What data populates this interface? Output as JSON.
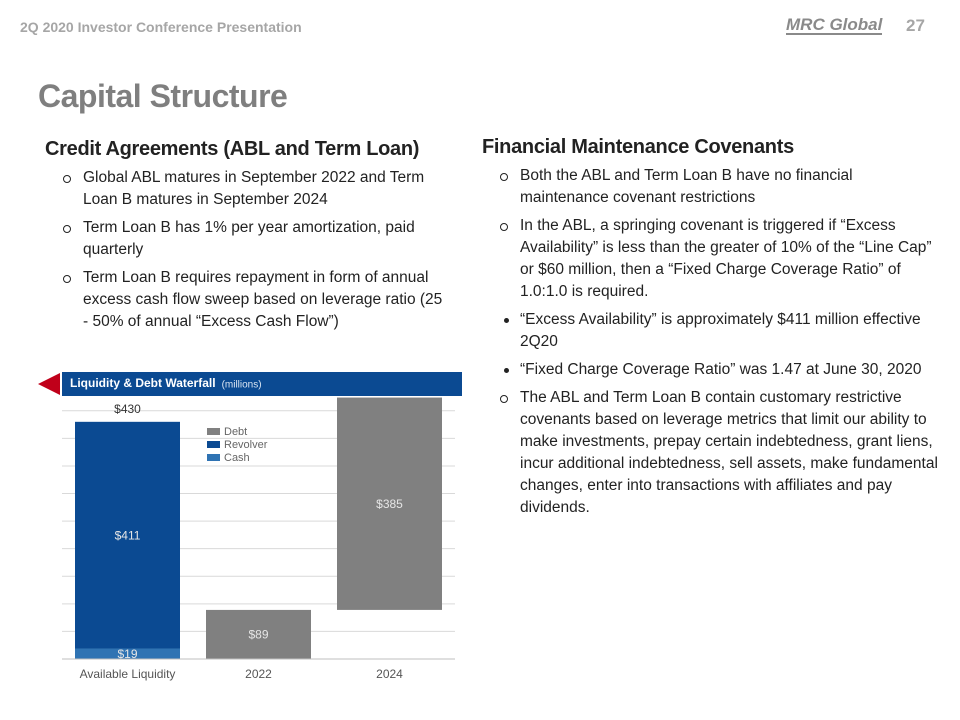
{
  "header": {
    "title": "2Q 2020 Investor Conference Presentation",
    "logo": "MRC Global",
    "page_number": "27"
  },
  "slide_title": "Capital Structure",
  "left": {
    "heading": "Credit Agreements (ABL and Term Loan)",
    "bullets": [
      "Global ABL matures in September 2022 and Term Loan B matures in September 2024",
      "Term Loan B has 1% per year amortization, paid quarterly",
      "Term Loan B requires repayment in form of annual excess cash flow sweep based on leverage ratio (25 - 50% of annual “Excess Cash Flow”)"
    ]
  },
  "right": {
    "heading": "Financial Maintenance Covenants",
    "bullets": [
      {
        "text": "Both the ABL and Term Loan B have no financial maintenance covenant restrictions",
        "sub": []
      },
      {
        "text": "In the ABL, a springing covenant is triggered if “Excess Availability” is less than the greater of 10% of the “Line Cap” or $60 million, then a “Fixed Charge Coverage Ratio” of 1.0:1.0 is required.",
        "sub": [
          "“Excess Availability” is approximately $411 million effective 2Q20",
          "“Fixed Charge Coverage Ratio” was 1.47 at June 30, 2020"
        ]
      },
      {
        "text": "The ABL and Term Loan B contain customary restrictive covenants based on leverage metrics that limit our ability to make investments, prepay certain indebtedness, grant liens, incur additional indebtedness, sell assets, make fundamental changes, enter into transactions with affiliates and pay dividends.",
        "sub": []
      }
    ]
  },
  "chart_data": {
    "type": "bar",
    "title": "Liquidity & Debt Waterfall",
    "subtitle": "(millions)",
    "categories": [
      "Available Liquidity",
      "2022",
      "2024"
    ],
    "series": [
      {
        "name": "Debt",
        "color": "#808080",
        "cumulative": true,
        "values": [
          null,
          89,
          385
        ],
        "value_labels": [
          null,
          "$89",
          "$385"
        ]
      },
      {
        "name": "Revolver",
        "color": "#0b4a92",
        "values": [
          411,
          null,
          null
        ],
        "value_labels": [
          "$411",
          null,
          null
        ]
      },
      {
        "name": "Cash",
        "color": "#2f73b3",
        "values": [
          19,
          null,
          null
        ],
        "value_labels": [
          "$19",
          null,
          null
        ]
      }
    ],
    "totals": [
      430,
      null,
      null
    ],
    "total_labels": [
      "$430",
      null,
      null
    ],
    "ylim": [
      0,
      475
    ],
    "yticks": [
      0,
      50,
      100,
      150,
      200,
      250,
      300,
      350,
      400,
      450
    ],
    "grid": true
  }
}
